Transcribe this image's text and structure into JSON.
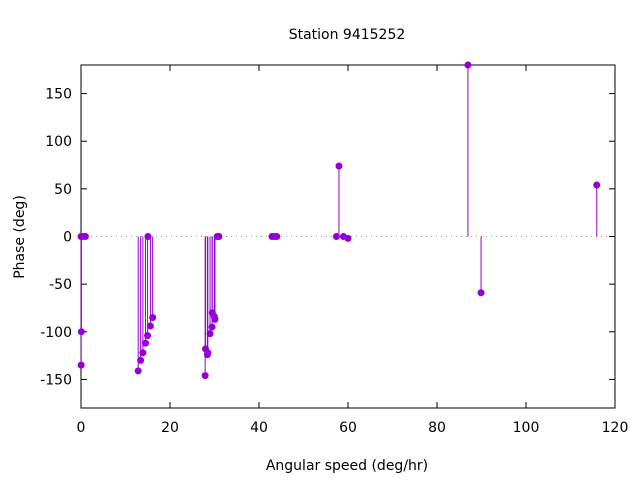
{
  "chart_data": {
    "type": "scatter",
    "style": "impulse",
    "title": "Station 9415252",
    "xlabel": "Angular speed (deg/hr)",
    "ylabel": "Phase (deg)",
    "xlim": [
      0,
      120
    ],
    "ylim": [
      -180,
      180
    ],
    "xticks": [
      0,
      20,
      40,
      60,
      80,
      100,
      120
    ],
    "yticks": [
      -150,
      -100,
      -50,
      0,
      50,
      100,
      150
    ],
    "zero_line": true,
    "color": "#9400d3",
    "grid": false,
    "points": [
      {
        "x": 0.0,
        "y": 0
      },
      {
        "x": 0.04,
        "y": -135
      },
      {
        "x": 0.08,
        "y": -100
      },
      {
        "x": 0.5,
        "y": 0
      },
      {
        "x": 1.0,
        "y": 0
      },
      {
        "x": 12.85,
        "y": -141
      },
      {
        "x": 13.4,
        "y": -130
      },
      {
        "x": 13.9,
        "y": -122
      },
      {
        "x": 14.5,
        "y": -112
      },
      {
        "x": 14.96,
        "y": -104
      },
      {
        "x": 15.04,
        "y": 0
      },
      {
        "x": 15.6,
        "y": -94
      },
      {
        "x": 16.1,
        "y": -85
      },
      {
        "x": 27.9,
        "y": -146
      },
      {
        "x": 27.97,
        "y": -118
      },
      {
        "x": 28.4,
        "y": -124
      },
      {
        "x": 28.5,
        "y": -122
      },
      {
        "x": 29.0,
        "y": -102
      },
      {
        "x": 29.45,
        "y": -95
      },
      {
        "x": 29.5,
        "y": -80
      },
      {
        "x": 29.96,
        "y": -84
      },
      {
        "x": 30.1,
        "y": -87
      },
      {
        "x": 30.6,
        "y": 0
      },
      {
        "x": 31.0,
        "y": 0
      },
      {
        "x": 42.9,
        "y": 0
      },
      {
        "x": 43.5,
        "y": 0
      },
      {
        "x": 44.0,
        "y": 0
      },
      {
        "x": 57.4,
        "y": 0
      },
      {
        "x": 57.97,
        "y": 74
      },
      {
        "x": 58.98,
        "y": 0
      },
      {
        "x": 60.0,
        "y": -2
      },
      {
        "x": 86.95,
        "y": 180
      },
      {
        "x": 89.9,
        "y": -59
      },
      {
        "x": 115.9,
        "y": 54
      }
    ]
  }
}
